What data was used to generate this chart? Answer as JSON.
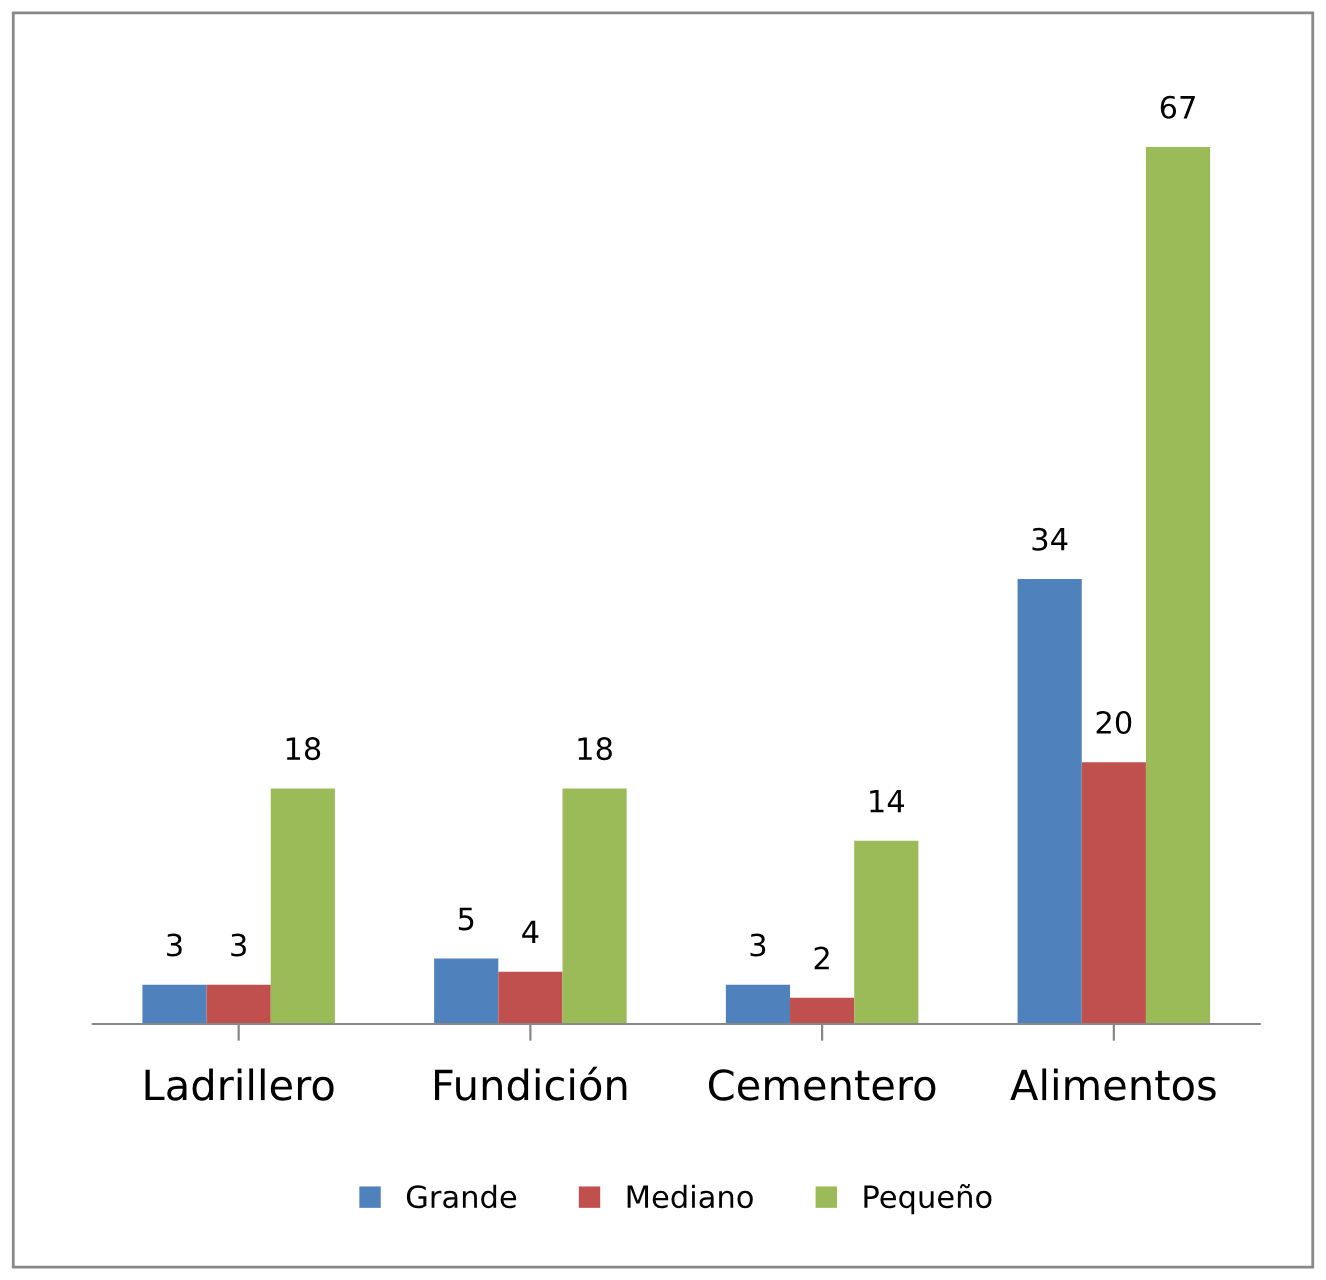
{
  "chart_data": {
    "type": "bar",
    "categories": [
      "Ladrillero",
      "Fundición",
      "Cementero",
      "Alimentos"
    ],
    "series": [
      {
        "name": "Grande",
        "color": "#4f81bd",
        "values": [
          3,
          5,
          3,
          34
        ]
      },
      {
        "name": "Mediano",
        "color": "#c0504d",
        "values": [
          3,
          4,
          2,
          20
        ]
      },
      {
        "name": "Pequeño",
        "color": "#9bbb59",
        "values": [
          18,
          18,
          14,
          67
        ]
      }
    ],
    "data_labels": true,
    "legend": "bottom",
    "grid": false
  }
}
